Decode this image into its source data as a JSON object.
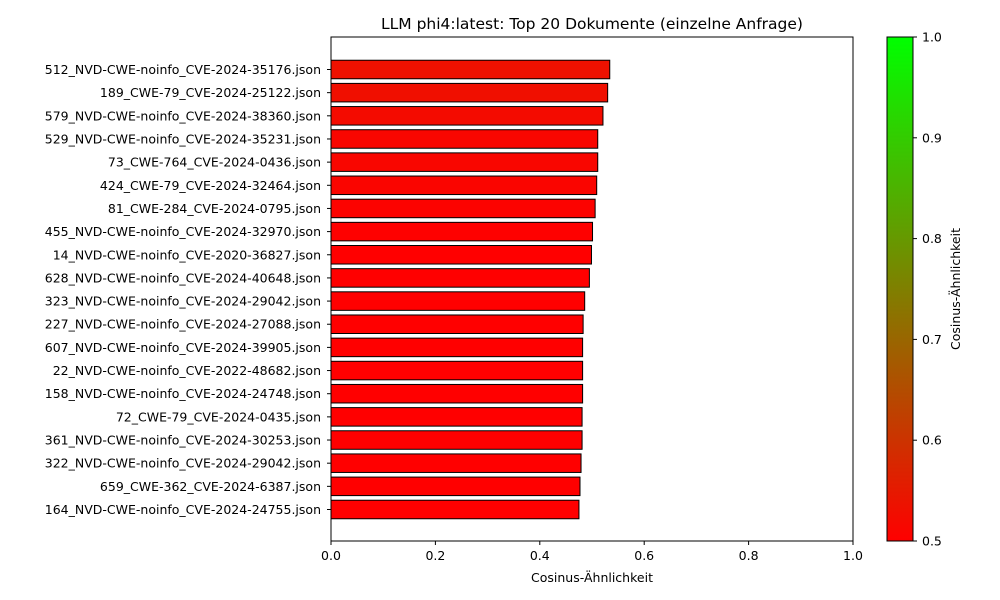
{
  "chart_data": {
    "type": "bar",
    "orientation": "horizontal",
    "title": "LLM phi4:latest: Top 20 Dokumente (einzelne Anfrage)",
    "xlabel": "Cosinus-Ähnlichkeit",
    "ylabel": "",
    "xlim": [
      0,
      1
    ],
    "x_ticks": [
      "0.0",
      "0.2",
      "0.4",
      "0.6",
      "0.8",
      "1.0"
    ],
    "grid": false,
    "categories": [
      "512_NVD-CWE-noinfo_CVE-2024-35176.json",
      "189_CWE-79_CVE-2024-25122.json",
      "579_NVD-CWE-noinfo_CVE-2024-38360.json",
      "529_NVD-CWE-noinfo_CVE-2024-35231.json",
      "73_CWE-764_CVE-2024-0436.json",
      "424_CWE-79_CVE-2024-32464.json",
      "81_CWE-284_CVE-2024-0795.json",
      "455_NVD-CWE-noinfo_CVE-2024-32970.json",
      "14_NVD-CWE-noinfo_CVE-2020-36827.json",
      "628_NVD-CWE-noinfo_CVE-2024-40648.json",
      "323_NVD-CWE-noinfo_CVE-2024-29042.json",
      "227_NVD-CWE-noinfo_CVE-2024-27088.json",
      "607_NVD-CWE-noinfo_CVE-2024-39905.json",
      "22_NVD-CWE-noinfo_CVE-2022-48682.json",
      "158_NVD-CWE-noinfo_CVE-2024-24748.json",
      "72_CWE-79_CVE-2024-0435.json",
      "361_NVD-CWE-noinfo_CVE-2024-30253.json",
      "322_NVD-CWE-noinfo_CVE-2024-29042.json",
      "659_CWE-362_CVE-2024-6387.json",
      "164_NVD-CWE-noinfo_CVE-2024-24755.json"
    ],
    "values": [
      0.534,
      0.53,
      0.521,
      0.511,
      0.511,
      0.509,
      0.506,
      0.501,
      0.499,
      0.495,
      0.486,
      0.483,
      0.482,
      0.482,
      0.482,
      0.481,
      0.481,
      0.479,
      0.477,
      0.475
    ],
    "colorbar": {
      "label": "Cosinus-Ähnlichkeit",
      "range": [
        0.5,
        1.0
      ],
      "ticks": [
        "0.5",
        "0.6",
        "0.7",
        "0.8",
        "0.9",
        "1.0"
      ],
      "color_low": "#ff0000",
      "color_high": "#00ff00"
    },
    "bar_edge_color": "#000000"
  }
}
